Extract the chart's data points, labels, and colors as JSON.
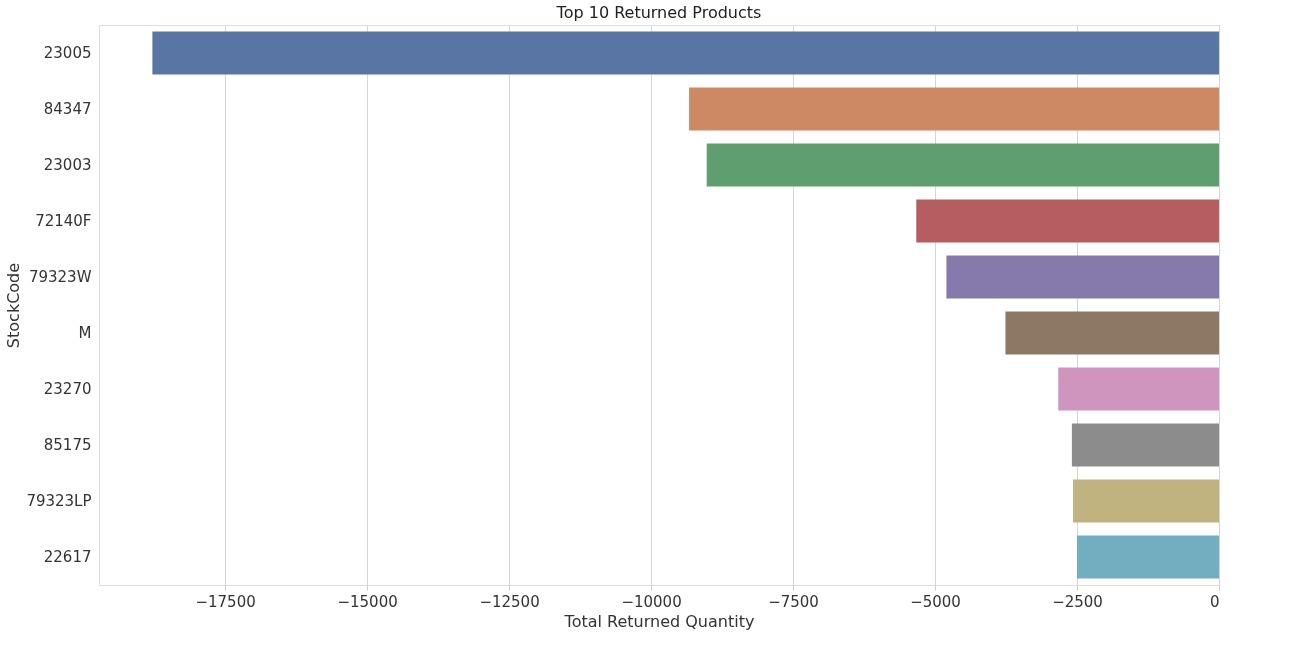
{
  "chart_data": {
    "type": "bar",
    "orientation": "horizontal",
    "title": "Top 10 Returned Products",
    "xlabel": "Total Returned Quantity",
    "ylabel": "StockCode",
    "categories": [
      "23005",
      "84347",
      "23003",
      "72140F",
      "79323W",
      "M",
      "23270",
      "85175",
      "79323LP",
      "22617"
    ],
    "values": [
      -18780,
      -9330,
      -9020,
      -5330,
      -4800,
      -3760,
      -2830,
      -2590,
      -2570,
      -2500
    ],
    "colors": [
      "#5975a4",
      "#cc8963",
      "#5f9e6e",
      "#b55d60",
      "#857aab",
      "#8d7866",
      "#d095bf",
      "#8c8c8c",
      "#c1b37f",
      "#71aec0"
    ],
    "xlim": [
      -19720,
      0
    ],
    "xticks": [
      -17500,
      -15000,
      -12500,
      -10000,
      -7500,
      -5000,
      -2500,
      0
    ],
    "grid": "x",
    "legend": false
  }
}
